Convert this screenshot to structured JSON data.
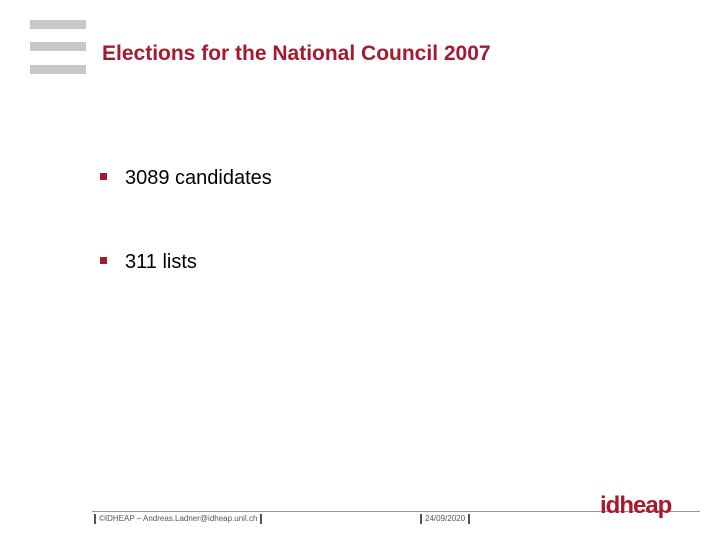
{
  "header": {
    "title": "Elections for the National Council 2007"
  },
  "bullets": [
    "3089 candidates",
    "311 lists"
  ],
  "footer": {
    "copyright": "©IDHEAP – Andreas.Ladner@idheap.unil.ch",
    "date": "24/09/2020",
    "logo": "idheap"
  }
}
